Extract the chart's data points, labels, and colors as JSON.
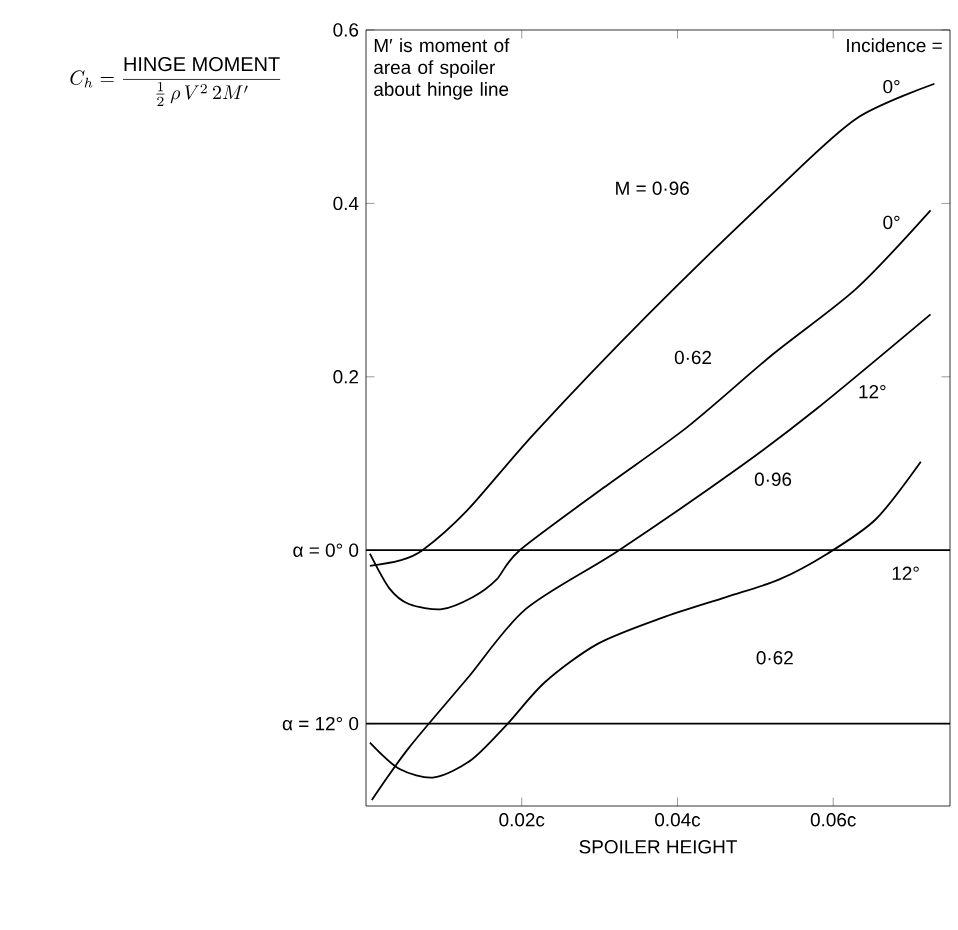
{
  "chart_data": {
    "type": "line",
    "ylabel": "C_{h} = \\dfrac{\\mathrm{HINGE\\ MOMENT}}{\\frac{1}{2}\\,\\rho\\, V^{2}\\, 2M'}",
    "xlabel": "SPOILER HEIGHT",
    "xlim": [
      0,
      0.075
    ],
    "ylim": [
      -0.295,
      0.6
    ],
    "xticks": [
      {
        "value": 0.02,
        "label": "0.02c"
      },
      {
        "value": 0.04,
        "label": "0.04c"
      },
      {
        "value": 0.06,
        "label": "0.06c"
      }
    ],
    "yticks": [
      {
        "value": -0.2,
        "label": "α = 12°   0"
      },
      {
        "value": 0,
        "label": "α = 0°   0"
      },
      0.2,
      0.4,
      0.6
    ],
    "marker": "none",
    "line_style": "solid",
    "series": [
      {
        "color": "#000000",
        "x": [
          0.0005,
          0.00425,
          0.00725,
          0.013,
          0.02175,
          0.03625,
          0.053,
          0.063,
          0.073
        ],
        "values": [
          -0.018,
          -0.012,
          0,
          0.046,
          0.136,
          0.272,
          0.418,
          0.498,
          0.538
        ]
      },
      {
        "color": "#000000",
        "x": [
          0.0005,
          0.003,
          0.0055,
          0.00975,
          0.01375,
          0.01675,
          0.01975,
          0.0305,
          0.04125,
          0.05225,
          0.063,
          0.0725
        ],
        "values": [
          -0.004,
          -0.044,
          -0.062,
          -0.068,
          -0.054,
          -0.034,
          0,
          0.072,
          0.142,
          0.226,
          0.302,
          0.392
        ]
      },
      {
        "color": "#000000",
        "x": [
          0.00075,
          0.0055,
          0.013,
          0.0205,
          0.0325,
          0.048,
          0.058,
          0.0725
        ],
        "values": [
          -0.288,
          -0.228,
          -0.148,
          -0.068,
          0,
          0.096,
          0.164,
          0.272
        ]
      },
      {
        "color": "#000000",
        "x": [
          0.0005,
          0.00425,
          0.00875,
          0.0135,
          0.018,
          0.023,
          0.02975,
          0.038,
          0.04625,
          0.053,
          0.05925,
          0.0655,
          0.07125
        ],
        "values": [
          -0.222,
          -0.252,
          -0.262,
          -0.242,
          -0.202,
          -0.152,
          -0.108,
          -0.078,
          -0.054,
          -0.034,
          -0.004,
          0.036,
          0.102
        ]
      }
    ],
    "ref_lines": [
      {
        "axis": "y",
        "value": 0
      },
      {
        "axis": "y",
        "value": -0.2
      }
    ],
    "annotations": [
      "M′ is moment of area of spoiler about hinge line",
      "Incidence =",
      "0°",
      "M = 0·96",
      "0°",
      "0·62",
      "12°",
      "0·96",
      "12°",
      "0·62"
    ]
  }
}
